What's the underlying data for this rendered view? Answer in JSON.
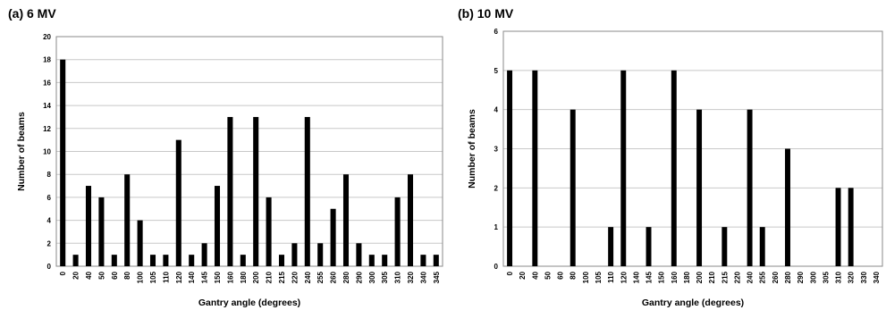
{
  "chart_data": [
    {
      "panel_label": "(a) 6 MV",
      "type": "bar",
      "xlabel": "Gantry angle (degrees)",
      "ylabel": "Number of beams",
      "ylim": [
        0,
        20
      ],
      "ytick_step": 2,
      "grid": true,
      "color": "#000000",
      "categories": [
        "0",
        "20",
        "40",
        "50",
        "60",
        "80",
        "100",
        "105",
        "110",
        "120",
        "140",
        "145",
        "150",
        "160",
        "180",
        "200",
        "210",
        "215",
        "220",
        "240",
        "255",
        "260",
        "280",
        "290",
        "300",
        "305",
        "310",
        "320",
        "340",
        "345"
      ],
      "values": [
        18,
        1,
        7,
        6,
        1,
        8,
        4,
        1,
        1,
        11,
        1,
        2,
        7,
        13,
        1,
        13,
        6,
        1,
        2,
        13,
        2,
        5,
        8,
        2,
        1,
        1,
        6,
        8,
        1,
        1
      ]
    },
    {
      "panel_label": "(b) 10 MV",
      "type": "bar",
      "xlabel": "Gantry angle (degrees)",
      "ylabel": "Number of beams",
      "ylim": [
        0,
        6
      ],
      "ytick_step": 1,
      "grid": true,
      "color": "#000000",
      "categories": [
        "0",
        "20",
        "40",
        "50",
        "60",
        "80",
        "100",
        "105",
        "110",
        "120",
        "140",
        "145",
        "150",
        "160",
        "180",
        "200",
        "210",
        "215",
        "220",
        "240",
        "255",
        "260",
        "280",
        "290",
        "300",
        "305",
        "310",
        "320",
        "330",
        "340"
      ],
      "values": [
        5,
        0,
        5,
        0,
        0,
        4,
        0,
        0,
        1,
        5,
        0,
        1,
        0,
        5,
        0,
        4,
        0,
        1,
        0,
        4,
        1,
        0,
        3,
        0,
        0,
        0,
        2,
        2,
        0,
        0
      ]
    }
  ]
}
